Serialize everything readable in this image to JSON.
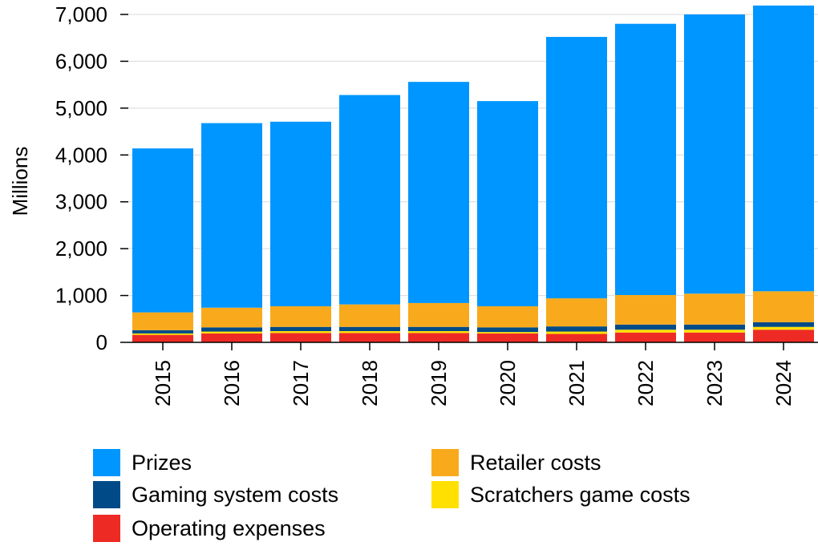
{
  "chart_data": {
    "type": "bar",
    "stacked": true,
    "categories": [
      "2015",
      "2016",
      "2017",
      "2018",
      "2019",
      "2020",
      "2021",
      "2022",
      "2023",
      "2024"
    ],
    "ylabel": "Millions",
    "ylim": [
      0,
      7000
    ],
    "yticks": [
      {
        "value": 0,
        "label": "0"
      },
      {
        "value": 1000,
        "label": "1,000"
      },
      {
        "value": 2000,
        "label": "2,000"
      },
      {
        "value": 3000,
        "label": "3,000"
      },
      {
        "value": 4000,
        "label": "4,000"
      },
      {
        "value": 5000,
        "label": "5,000"
      },
      {
        "value": 6000,
        "label": "6,000"
      },
      {
        "value": 7000,
        "label": "7,000"
      }
    ],
    "grid": "horizontal",
    "legend_position": "bottom",
    "series": [
      {
        "name": "Operating expenses",
        "color": "#EE2A24",
        "values": [
          160,
          190,
          200,
          200,
          200,
          190,
          180,
          210,
          210,
          270
        ]
      },
      {
        "name": "Scratchers game costs",
        "color": "#FFE000",
        "values": [
          30,
          40,
          40,
          40,
          40,
          30,
          50,
          60,
          60,
          60
        ]
      },
      {
        "name": "Gaming system costs",
        "color": "#004B87",
        "values": [
          70,
          90,
          90,
          90,
          90,
          100,
          110,
          110,
          110,
          100
        ]
      },
      {
        "name": "Retailer costs",
        "color": "#F8AA1C",
        "values": [
          380,
          420,
          440,
          480,
          510,
          450,
          600,
          630,
          660,
          660
        ]
      },
      {
        "name": "Prizes",
        "color": "#0096FF",
        "values": [
          3500,
          3940,
          3940,
          4470,
          4720,
          4380,
          5580,
          5790,
          5960,
          6100
        ]
      }
    ]
  },
  "legend": {
    "items": [
      {
        "label": "Prizes",
        "color": "#0096FF"
      },
      {
        "label": "Retailer costs",
        "color": "#F8AA1C"
      },
      {
        "label": "Gaming system costs",
        "color": "#004B87"
      },
      {
        "label": "Scratchers game costs",
        "color": "#FFE000"
      },
      {
        "label": "Operating expenses",
        "color": "#EE2A24"
      }
    ]
  }
}
